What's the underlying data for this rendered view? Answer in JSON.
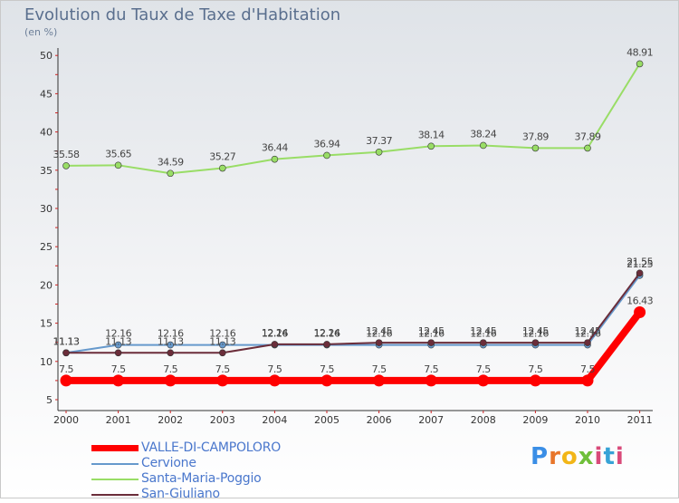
{
  "title": "Evolution du Taux de Taxe d'Habitation",
  "unit_label": "(en %)",
  "logo_text": "Proxiti",
  "chart_data": {
    "type": "line",
    "x": [
      "2000",
      "2001",
      "2002",
      "2003",
      "2004",
      "2005",
      "2006",
      "2007",
      "2008",
      "2009",
      "2010",
      "2011"
    ],
    "ylim": [
      5,
      50
    ],
    "yticks": [
      5,
      10,
      15,
      20,
      25,
      30,
      35,
      40,
      45,
      50
    ],
    "grid": false,
    "legend_position": "bottom-left",
    "series": [
      {
        "name": "Santa-Maria-Poggio",
        "color": "#99dd66",
        "values": [
          35.58,
          35.65,
          34.59,
          35.27,
          36.44,
          36.94,
          37.37,
          38.14,
          38.24,
          37.89,
          37.89,
          48.91
        ],
        "labels": [
          "35.58",
          "35.65",
          "34.59",
          "35.27",
          "36.44",
          "36.94",
          "37.37",
          "38.14",
          "38.24",
          "37.89",
          "37.89",
          "48.91"
        ]
      },
      {
        "name": "Cervione",
        "color": "#6699cc",
        "values": [
          11.13,
          12.16,
          12.16,
          12.16,
          12.16,
          12.16,
          12.16,
          12.16,
          12.16,
          12.16,
          12.16,
          21.25
        ],
        "labels": [
          "11.13",
          "12.16",
          "12.16",
          "12.16",
          "12.16",
          "12.16",
          "12.16",
          "12.16",
          "12.16",
          "12.16",
          "12.16",
          "21.25"
        ]
      },
      {
        "name": "San-Giuliano",
        "color": "#6b2d3a",
        "values": [
          11.13,
          11.13,
          11.13,
          11.13,
          12.24,
          12.24,
          12.45,
          12.45,
          12.45,
          12.45,
          12.45,
          21.55
        ],
        "labels": [
          "11.13",
          "11.13",
          "11.13",
          "11.13",
          "12.24",
          "12.24",
          "12.45",
          "12.45",
          "12.45",
          "12.45",
          "12.45",
          "21.55"
        ]
      },
      {
        "name": "VALLE-DI-CAMPOLORO",
        "color": "#ff0000",
        "values": [
          7.5,
          7.5,
          7.5,
          7.5,
          7.5,
          7.5,
          7.5,
          7.5,
          7.5,
          7.5,
          7.5,
          16.43
        ],
        "labels": [
          "7.5",
          "7.5",
          "7.5",
          "7.5",
          "7.5",
          "7.5",
          "7.5",
          "7.5",
          "7.5",
          "7.5",
          "7.5",
          "16.43"
        ]
      }
    ]
  },
  "legend": [
    {
      "label": "VALLE-DI-CAMPOLORO",
      "color": "#ff0000"
    },
    {
      "label": "Cervione",
      "color": "#6699cc"
    },
    {
      "label": "Santa-Maria-Poggio",
      "color": "#99dd66"
    },
    {
      "label": "San-Giuliano",
      "color": "#6b2d3a"
    }
  ]
}
